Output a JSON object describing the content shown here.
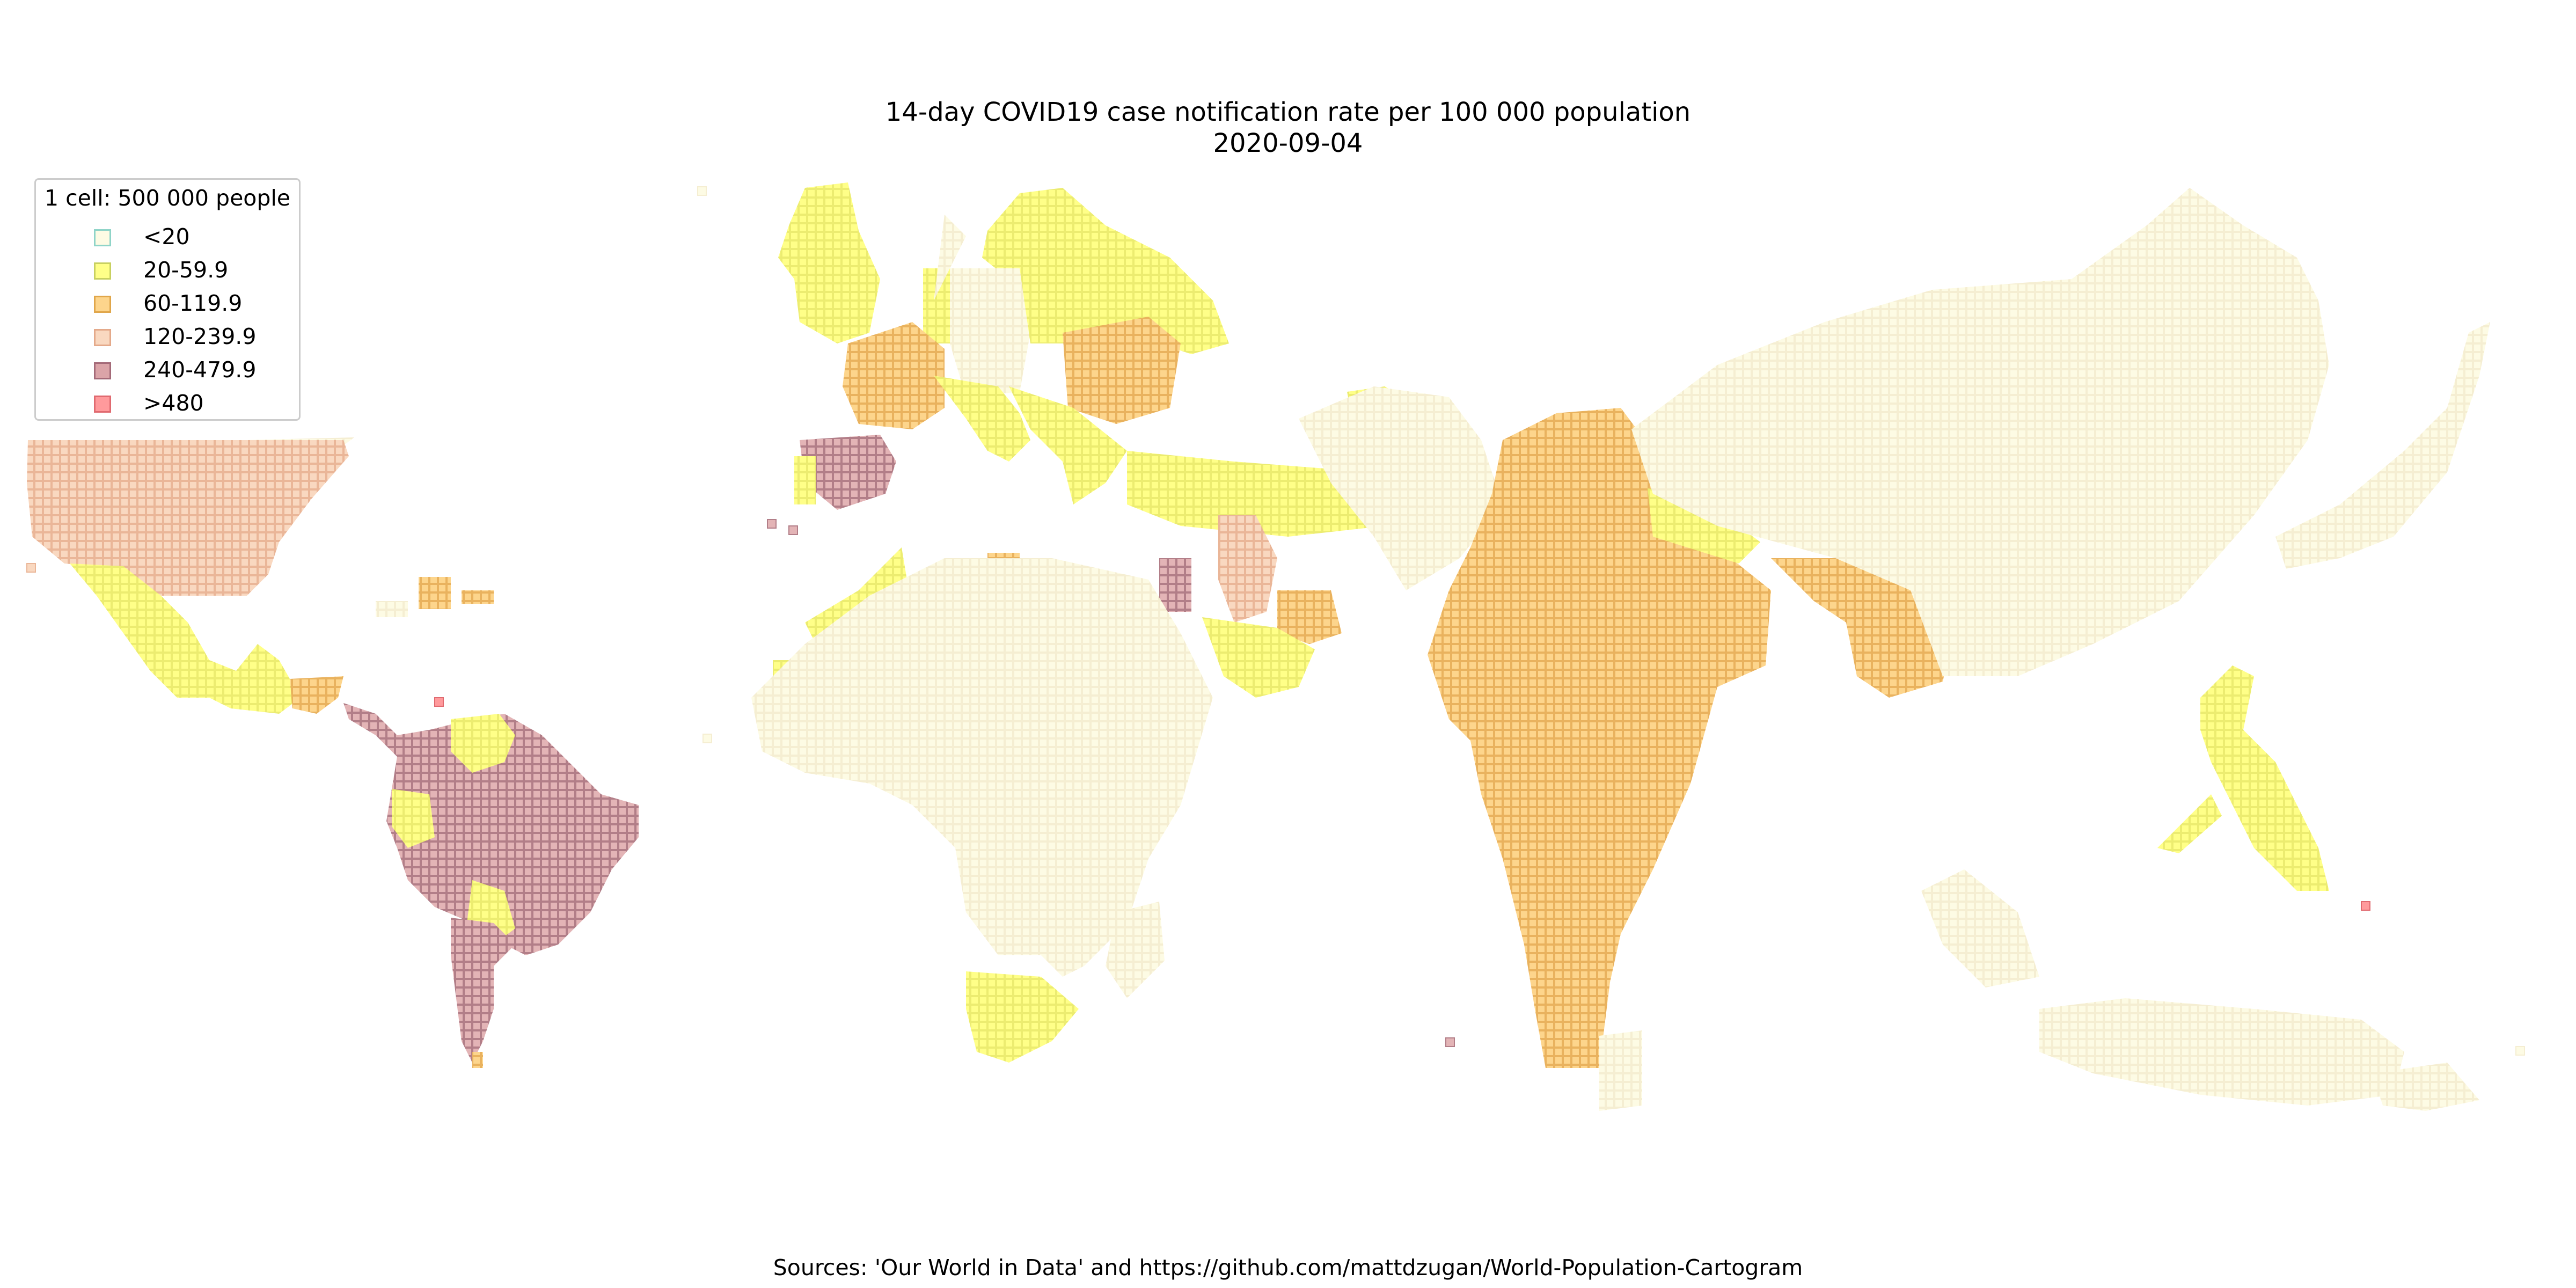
{
  "title": {
    "line1": "14-day COVID19 case notification rate per 100 000 population",
    "line2": "2020-09-04"
  },
  "legend": {
    "title": "1 cell: 500 000 people",
    "placement": "top-left",
    "items": [
      {
        "label": "<20",
        "fill": "#fdfbe4",
        "edge": "#8fd4c8"
      },
      {
        "label": "20-59.9",
        "fill": "#ffff88",
        "edge": "#c8d060"
      },
      {
        "label": "60-119.9",
        "fill": "#fdd58c",
        "edge": "#e0a64a"
      },
      {
        "label": "120-239.9",
        "fill": "#f9d8c0",
        "edge": "#e4a98a"
      },
      {
        "label": "240-479.9",
        "fill": "#dba4a8",
        "edge": "#a46a78"
      },
      {
        "label": ">480",
        "fill": "#ff9a9c",
        "edge": "#e06a70"
      }
    ]
  },
  "map": {
    "cell_population": "500 000",
    "regions": [
      {
        "area": "United States",
        "category": "120-239.9"
      },
      {
        "area": "Canada",
        "category": "<20"
      },
      {
        "area": "Mexico",
        "category": "20-59.9"
      },
      {
        "area": "Central America",
        "category": "20-59.9"
      },
      {
        "area": "Brazil and Peru",
        "category": "240-479.9"
      },
      {
        "area": "Argentina",
        "category": "240-479.9"
      },
      {
        "area": "Venezuela",
        "category": "20-59.9"
      },
      {
        "area": "Ecuador",
        "category": "20-59.9"
      },
      {
        "area": "Bolivia",
        "category": "20-59.9"
      },
      {
        "area": "Cuba",
        "category": "60-119.9"
      },
      {
        "area": "United Kingdom",
        "category": "20-59.9"
      },
      {
        "area": "Nordics",
        "category": "20-59.9"
      },
      {
        "area": "Germany",
        "category": "<20"
      },
      {
        "area": "France",
        "category": "60-119.9"
      },
      {
        "area": "Spain",
        "category": "240-479.9"
      },
      {
        "area": "Portugal",
        "category": "20-59.9"
      },
      {
        "area": "Italy",
        "category": "20-59.9"
      },
      {
        "area": "Ukraine and Romania",
        "category": "60-119.9"
      },
      {
        "area": "Turkey",
        "category": "20-59.9"
      },
      {
        "area": "Israel",
        "category": "240-479.9"
      },
      {
        "area": "Iraq",
        "category": "120-239.9"
      },
      {
        "area": "North Africa",
        "category": "20-59.9"
      },
      {
        "area": "Africa",
        "category": "<20"
      },
      {
        "area": "South Africa",
        "category": "20-59.9"
      },
      {
        "area": "India",
        "category": "60-119.9"
      },
      {
        "area": "Bangladesh",
        "category": "60-119.9"
      },
      {
        "area": "Nepal",
        "category": "20-59.9"
      },
      {
        "area": "China",
        "category": "<20"
      },
      {
        "area": "Philippines",
        "category": "20-59.9"
      },
      {
        "area": "Indonesia",
        "category": "<20"
      }
    ]
  },
  "source": "Sources: 'Our World in Data' and https://github.com/mattdzugan/World-Population-Cartogram"
}
